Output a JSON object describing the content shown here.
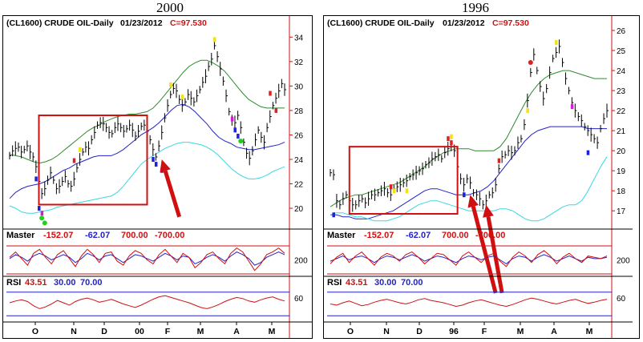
{
  "colors": {
    "price_bar": "#000000",
    "upper_ma": "#2e8b2e",
    "mid_ma": "#2323c8",
    "lower_ma": "#38d8e0",
    "box": "#d01010",
    "arrow": "#d01010",
    "red_text": "#d01010",
    "blue_text": "#2323c8",
    "master_red": "#d01010",
    "master_blue": "#2323c8",
    "rsi_red": "#d01010",
    "rsi_blue": "#2323c8",
    "marker_yellow": "#f0e020",
    "marker_red": "#e02020",
    "marker_blue": "#2020e0",
    "marker_magenta": "#d020d0",
    "marker_green": "#20d020"
  },
  "chart_data": [
    {
      "type": "line",
      "title": "2000",
      "header": {
        "symbol": "(CL1600) CRUDE OIL-Daily",
        "date": "01/23/2012",
        "close": "C=97.530"
      },
      "price_axis": {
        "ticks": [
          "34",
          "32",
          "30",
          "28",
          "26",
          "24",
          "22",
          "20"
        ],
        "ylim": [
          18.3,
          35.2
        ]
      },
      "x_ticks": [
        "O",
        "N",
        "D",
        "00",
        "F",
        "M",
        "A",
        "M"
      ],
      "price": [
        24.3,
        24.7,
        24.9,
        25.0,
        24.6,
        24.8,
        25.1,
        24.6,
        24.2,
        23.4,
        22.2,
        21.2,
        21.6,
        22.3,
        22.9,
        22.3,
        21.6,
        21.8,
        22.2,
        22.6,
        22.0,
        21.8,
        22.4,
        23.3,
        24.0,
        24.6,
        25.0,
        24.9,
        25.6,
        26.2,
        26.8,
        27.0,
        26.9,
        26.6,
        26.2,
        26.1,
        26.6,
        26.9,
        26.6,
        26.3,
        26.5,
        26.8,
        26.4,
        25.9,
        26.3,
        26.7,
        26.8,
        26.3,
        25.6,
        24.8,
        24.2,
        25.1,
        26.2,
        27.4,
        28.4,
        29.3,
        29.8,
        29.6,
        28.9,
        28.4,
        28.7,
        29.3,
        29.0,
        28.7,
        29.2,
        29.7,
        30.3,
        30.8,
        31.6,
        32.2,
        33.3,
        32.4,
        31.4,
        30.4,
        29.2,
        27.9,
        27.2,
        27.0,
        27.6,
        26.6,
        25.4,
        24.5,
        24.1,
        24.7,
        25.6,
        26.4,
        25.8,
        25.4,
        26.6,
        27.5,
        28.4,
        29.0,
        29.6,
        30.2,
        29.7
      ],
      "upper_ma": [
        24.4,
        24.3,
        24.2,
        24.0,
        23.8,
        23.7,
        23.8,
        24.0,
        24.3,
        24.7,
        25.1,
        25.5,
        25.9,
        26.3,
        26.6,
        26.8,
        27.1,
        27.3,
        27.5,
        27.6,
        27.7,
        27.7,
        27.8,
        27.9,
        28.2,
        28.7,
        29.3,
        29.9,
        30.5,
        31.1,
        31.6,
        31.9,
        32.1,
        32.1,
        31.9,
        31.6,
        31.2,
        30.6,
        30.0,
        29.4,
        28.9,
        28.6,
        28.3,
        28.2,
        28.2,
        28.2,
        28.2
      ],
      "mid_ma": [
        20.8,
        21.3,
        21.6,
        21.8,
        21.9,
        22.0,
        22.2,
        22.5,
        22.8,
        23.1,
        23.3,
        23.6,
        23.8,
        24.0,
        24.2,
        24.3,
        24.3,
        24.3,
        24.5,
        24.8,
        25.2,
        25.6,
        26.0,
        26.3,
        26.6,
        27.0,
        27.5,
        28.0,
        28.4,
        28.5,
        28.3,
        27.9,
        27.4,
        26.9,
        26.3,
        25.8,
        25.5,
        25.3,
        25.0,
        24.9,
        24.8,
        24.8,
        24.9,
        25.0,
        25.1,
        25.2,
        25.4
      ],
      "lower_ma": [
        20.2,
        20.0,
        19.7,
        19.6,
        19.6,
        19.7,
        19.8,
        19.9,
        20.1,
        20.2,
        20.3,
        20.4,
        20.5,
        20.6,
        20.7,
        20.8,
        20.9,
        21.0,
        21.3,
        21.8,
        22.4,
        23.0,
        23.6,
        24.0,
        24.3,
        24.6,
        24.9,
        25.1,
        25.3,
        25.4,
        25.4,
        25.3,
        25.2,
        25.0,
        24.7,
        24.3,
        23.8,
        23.3,
        22.9,
        22.6,
        22.4,
        22.4,
        22.5,
        22.7,
        23.0,
        23.2,
        23.4
      ],
      "markers": [
        {
          "bar": 10,
          "price": 20.0,
          "color": "marker_blue"
        },
        {
          "bar": 11,
          "price": 19.6,
          "color": "marker_magenta"
        },
        {
          "bar": 11,
          "price": 19.2,
          "color": "marker_green"
        },
        {
          "bar": 12,
          "price": 18.8,
          "color": "marker_green"
        },
        {
          "bar": 9,
          "price": 22.4,
          "color": "marker_blue"
        },
        {
          "bar": 22,
          "price": 23.9,
          "color": "marker_red"
        },
        {
          "bar": 24,
          "price": 24.8,
          "color": "marker_yellow"
        },
        {
          "bar": 49,
          "price": 24.0,
          "color": "marker_blue"
        },
        {
          "bar": 50,
          "price": 23.6,
          "color": "marker_blue"
        },
        {
          "bar": 52,
          "price": 23.1,
          "color": "marker_blue"
        },
        {
          "bar": 55,
          "price": 30.1,
          "color": "marker_yellow"
        },
        {
          "bar": 59,
          "price": 29.1,
          "color": "marker_yellow"
        },
        {
          "bar": 70,
          "price": 33.8,
          "color": "marker_yellow"
        },
        {
          "bar": 76,
          "price": 27.3,
          "color": "marker_magenta"
        },
        {
          "bar": 77,
          "price": 26.4,
          "color": "marker_blue"
        },
        {
          "bar": 78,
          "price": 25.9,
          "color": "marker_blue"
        },
        {
          "bar": 79,
          "price": 25.5,
          "color": "marker_green"
        },
        {
          "bar": 91,
          "price": 28.0,
          "color": "marker_red"
        },
        {
          "bar": 89,
          "price": 29.4,
          "color": "marker_red"
        }
      ],
      "box": {
        "bar_start": 10,
        "bar_end": 47,
        "price_top": 27.6,
        "price_bottom": 20.3
      },
      "arrows": [
        {
          "tip_bar": 52,
          "tip_price": 24.0,
          "tail_bar": 58,
          "tail_price": 19.3
        }
      ],
      "master": {
        "label": "Master",
        "v1": "-152.07",
        "v2": "-62.07",
        "v3": "700.00",
        "v4": "-700.00",
        "tick": "200",
        "red": [
          0.2,
          0.6,
          0.1,
          -0.4,
          0.5,
          0.8,
          0.2,
          -0.3,
          0.4,
          0.7,
          0.1,
          -0.5,
          0.3,
          0.8,
          0.4,
          -0.2,
          0.5,
          0.6,
          -0.1,
          -0.4,
          0.3,
          0.7,
          0.5,
          0.0,
          -0.3,
          0.4,
          0.8,
          0.3,
          -0.2,
          0.5,
          0.2,
          -0.6,
          -0.2,
          0.4,
          0.6,
          0.1,
          -0.3,
          0.5,
          0.9,
          0.6,
          -0.1,
          -0.8,
          -0.3,
          0.4,
          0.6,
          0.9,
          0.5
        ],
        "blue": [
          0.1,
          0.4,
          0.2,
          -0.1,
          0.3,
          0.5,
          0.3,
          0.0,
          0.2,
          0.4,
          0.2,
          -0.2,
          0.1,
          0.5,
          0.3,
          0.0,
          0.3,
          0.4,
          0.1,
          -0.2,
          0.1,
          0.4,
          0.3,
          0.1,
          -0.1,
          0.2,
          0.5,
          0.3,
          0.0,
          0.3,
          0.2,
          -0.3,
          -0.1,
          0.2,
          0.4,
          0.2,
          -0.1,
          0.3,
          0.6,
          0.4,
          0.1,
          -0.4,
          -0.2,
          0.2,
          0.4,
          0.6,
          0.4
        ]
      },
      "rsi": {
        "label": "RSI",
        "v1": "43.51",
        "v2": "30.00",
        "v3": "70.00",
        "tick": "60",
        "red": [
          52,
          55,
          57,
          54,
          47,
          42,
          45,
          50,
          56,
          52,
          48,
          54,
          58,
          60,
          57,
          53,
          55,
          58,
          54,
          50,
          47,
          44,
          48,
          53,
          58,
          62,
          64,
          61,
          58,
          55,
          52,
          48,
          44,
          42,
          45,
          49,
          54,
          58,
          61,
          59,
          55,
          53,
          57,
          60,
          62,
          58,
          55
        ]
      }
    },
    {
      "type": "line",
      "title": "1996",
      "header": {
        "symbol": "(CL1600) CRUDE OIL-Daily",
        "date": "01/23/2012",
        "close": "C=97.530"
      },
      "price_axis": {
        "ticks": [
          "26",
          "25",
          "24",
          "23",
          "22",
          "21",
          "20",
          "19",
          "18",
          "17"
        ],
        "ylim": [
          16.25,
          26.4
        ]
      },
      "x_ticks": [
        "O",
        "N",
        "D",
        "96",
        "F",
        "M",
        "A",
        "M"
      ],
      "price": [
        18.9,
        18.8,
        17.5,
        17.3,
        17.6,
        17.8,
        17.5,
        17.3,
        17.3,
        17.5,
        17.6,
        17.4,
        17.6,
        17.8,
        17.8,
        17.9,
        18.0,
        18.1,
        17.9,
        17.8,
        18.1,
        18.2,
        18.3,
        18.4,
        18.5,
        18.7,
        18.8,
        18.9,
        19.0,
        19.1,
        19.3,
        19.4,
        19.6,
        19.7,
        19.8,
        19.6,
        19.9,
        20.1,
        20.2,
        20.0,
        19.2,
        18.6,
        18.3,
        18.6,
        18.4,
        17.9,
        17.8,
        17.6,
        17.3,
        17.5,
        17.8,
        17.9,
        18.3,
        19.1,
        19.7,
        19.8,
        20.0,
        19.9,
        20.0,
        20.4,
        20.6,
        21.3,
        22.5,
        23.9,
        24.8,
        24.0,
        23.2,
        22.6,
        23.1,
        23.9,
        24.6,
        24.9,
        25.2,
        24.4,
        23.6,
        23.0,
        22.4,
        22.0,
        21.7,
        21.5,
        21.2,
        21.0,
        20.8,
        20.6,
        20.4,
        21.1,
        21.6,
        22.0
      ],
      "upper_ma": [
        17.2,
        17.4,
        17.6,
        17.7,
        17.8,
        17.8,
        17.9,
        18.0,
        18.1,
        18.2,
        18.3,
        18.4,
        18.6,
        18.8,
        19.0,
        19.2,
        19.5,
        19.7,
        19.9,
        20.0,
        20.1,
        20.1,
        20.1,
        20.0,
        20.0,
        20.0,
        20.0,
        20.2,
        20.6,
        21.2,
        21.8,
        22.4,
        22.9,
        23.3,
        23.6,
        23.8,
        23.9,
        24.0,
        24.0,
        23.9,
        23.8,
        23.7,
        23.6,
        23.6,
        23.6
      ],
      "mid_ma": [
        16.8,
        16.8,
        16.7,
        16.7,
        16.6,
        16.6,
        16.6,
        16.7,
        16.8,
        16.9,
        17.0,
        17.2,
        17.4,
        17.6,
        17.8,
        18.0,
        18.1,
        18.1,
        18.0,
        17.9,
        17.8,
        17.8,
        17.8,
        17.9,
        18.0,
        18.2,
        18.5,
        18.9,
        19.3,
        19.7,
        20.1,
        20.5,
        20.8,
        21.0,
        21.1,
        21.2,
        21.2,
        21.2,
        21.2,
        21.2,
        21.2,
        21.1,
        21.1,
        21.1,
        21.1
      ],
      "lower_ma": [
        16.8,
        16.9,
        16.9,
        16.8,
        16.7,
        16.7,
        16.6,
        16.5,
        16.5,
        16.5,
        16.6,
        16.7,
        16.9,
        17.1,
        17.3,
        17.4,
        17.5,
        17.5,
        17.4,
        17.3,
        17.2,
        17.1,
        17.0,
        17.0,
        17.0,
        17.0,
        17.0,
        17.1,
        17.1,
        17.0,
        16.8,
        16.6,
        16.5,
        16.5,
        16.6,
        16.8,
        17.0,
        17.2,
        17.3,
        17.3,
        17.5,
        18.0,
        18.6,
        19.2,
        19.7
      ],
      "markers": [
        {
          "bar": 1,
          "price": 16.8,
          "color": "marker_blue"
        },
        {
          "bar": 19,
          "price": 18.2,
          "color": "marker_red"
        },
        {
          "bar": 20,
          "price": 18.0,
          "color": "marker_yellow"
        },
        {
          "bar": 24,
          "price": 18.0,
          "color": "marker_yellow"
        },
        {
          "bar": 37,
          "price": 20.6,
          "color": "marker_red"
        },
        {
          "bar": 38,
          "price": 20.4,
          "color": "marker_red"
        },
        {
          "bar": 38,
          "price": 20.7,
          "color": "marker_yellow"
        },
        {
          "bar": 42,
          "price": 17.8,
          "color": "marker_blue"
        },
        {
          "bar": 53,
          "price": 19.5,
          "color": "marker_red"
        },
        {
          "bar": 63,
          "price": 24.4,
          "color": "marker_red"
        },
        {
          "bar": 62,
          "price": 22.0,
          "color": "marker_yellow"
        },
        {
          "bar": 71,
          "price": 25.4,
          "color": "marker_yellow"
        },
        {
          "bar": 76,
          "price": 22.2,
          "color": "marker_magenta"
        },
        {
          "bar": 81,
          "price": 19.9,
          "color": "marker_blue"
        }
      ],
      "box": {
        "bar_start": 6,
        "bar_end": 40,
        "price_top": 20.2,
        "price_bottom": 16.85
      },
      "arrows": [
        {
          "tip_bar": 44,
          "tip_price": 17.8,
          "tail_bar": 52,
          "tail_price": 12.9
        },
        {
          "tip_bar": 49,
          "tip_price": 17.3,
          "tail_bar": 54,
          "tail_price": 12.9
        }
      ],
      "master": {
        "label": "Master",
        "v1": "-152.07",
        "v2": "-62.07",
        "v3": "700.00",
        "v4": "-700.00",
        "tick": "200",
        "red": [
          -0.3,
          0.2,
          0.5,
          -0.2,
          0.3,
          0.6,
          0.1,
          -0.4,
          0.2,
          0.5,
          0.3,
          -0.1,
          0.4,
          0.6,
          0.2,
          -0.3,
          0.1,
          0.5,
          0.4,
          0.0,
          -0.4,
          0.3,
          0.6,
          0.2,
          -0.2,
          0.3,
          0.5,
          -0.1,
          -0.5,
          0.2,
          0.6,
          0.3,
          -0.2,
          0.4,
          0.7,
          0.3,
          -0.3,
          0.2,
          0.5,
          0.1,
          -0.2,
          0.3,
          0.2,
          0.1,
          0.3
        ],
        "blue": [
          -0.1,
          0.1,
          0.3,
          0.0,
          0.2,
          0.3,
          0.1,
          -0.2,
          0.1,
          0.3,
          0.2,
          0.0,
          0.2,
          0.4,
          0.2,
          -0.1,
          0.1,
          0.3,
          0.2,
          0.0,
          -0.2,
          0.1,
          0.3,
          0.2,
          0.0,
          0.2,
          0.3,
          0.0,
          -0.3,
          0.1,
          0.3,
          0.2,
          -0.1,
          0.2,
          0.4,
          0.2,
          -0.1,
          0.1,
          0.3,
          0.1,
          -0.1,
          0.2,
          0.1,
          0.1,
          0.2
        ]
      },
      "rsi": {
        "label": "RSI",
        "v1": "43.51",
        "v2": "30.00",
        "v3": "70.00",
        "tick": "60",
        "red": [
          50,
          48,
          52,
          55,
          51,
          47,
          49,
          53,
          56,
          58,
          55,
          52,
          50,
          53,
          57,
          59,
          56,
          54,
          52,
          49,
          46,
          48,
          52,
          55,
          57,
          54,
          51,
          48,
          46,
          49,
          53,
          57,
          60,
          58,
          55,
          52,
          50,
          53,
          56,
          58,
          54,
          51,
          53,
          56,
          58
        ]
      }
    }
  ]
}
